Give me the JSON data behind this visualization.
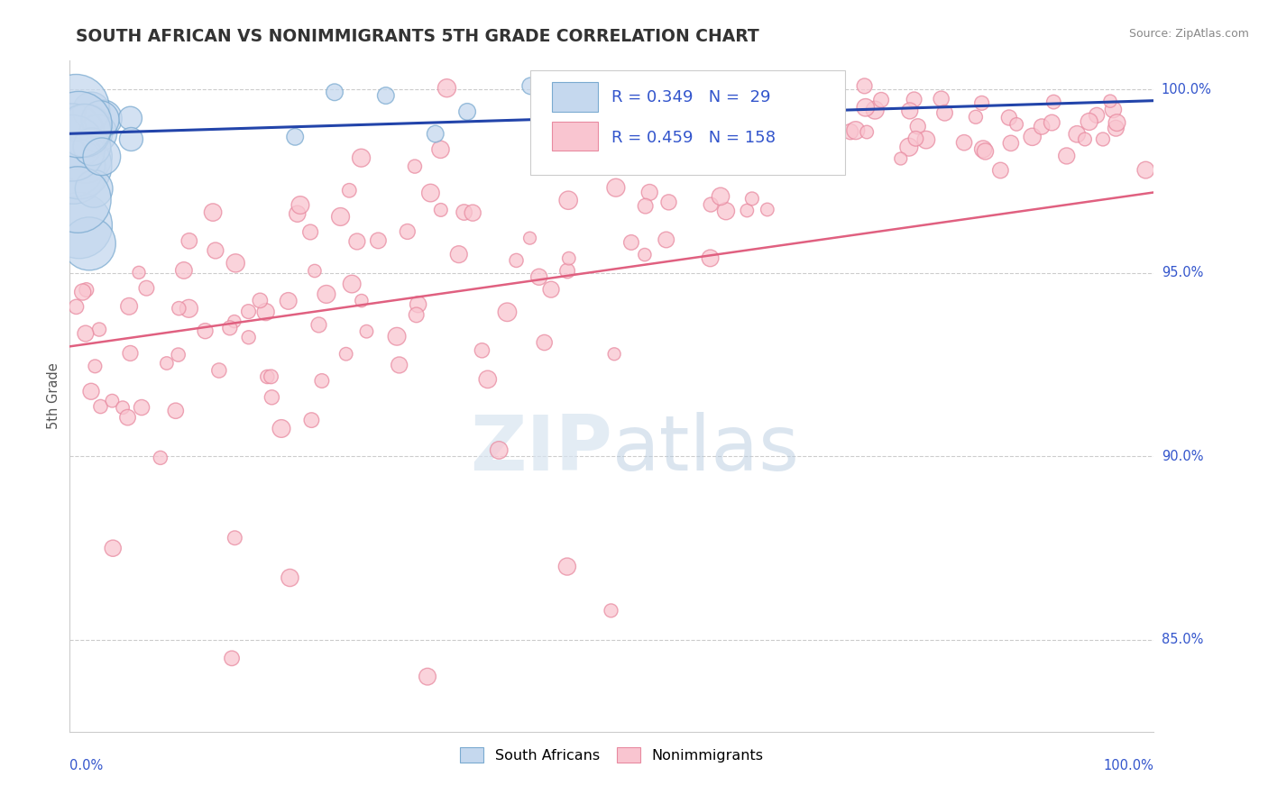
{
  "title": "SOUTH AFRICAN VS NONIMMIGRANTS 5TH GRADE CORRELATION CHART",
  "source": "Source: ZipAtlas.com",
  "ylabel": "5th Grade",
  "xrange": [
    0.0,
    1.0
  ],
  "yrange": [
    0.825,
    1.008
  ],
  "blue_R": 0.349,
  "blue_N": 29,
  "pink_R": 0.459,
  "pink_N": 158,
  "blue_face_color": "#c5d8ee",
  "blue_edge_color": "#7aaad0",
  "pink_face_color": "#f9c5d0",
  "pink_edge_color": "#e88aa0",
  "blue_line_color": "#2244aa",
  "pink_line_color": "#e06080",
  "legend_text_color": "#3355cc",
  "title_color": "#333333",
  "grid_color": "#cccccc",
  "ytick_color": "#3355cc",
  "xtick_color": "#3355cc",
  "blue_line_y0": 0.988,
  "blue_line_y1": 0.997,
  "pink_line_y0": 0.93,
  "pink_line_y1": 0.972
}
